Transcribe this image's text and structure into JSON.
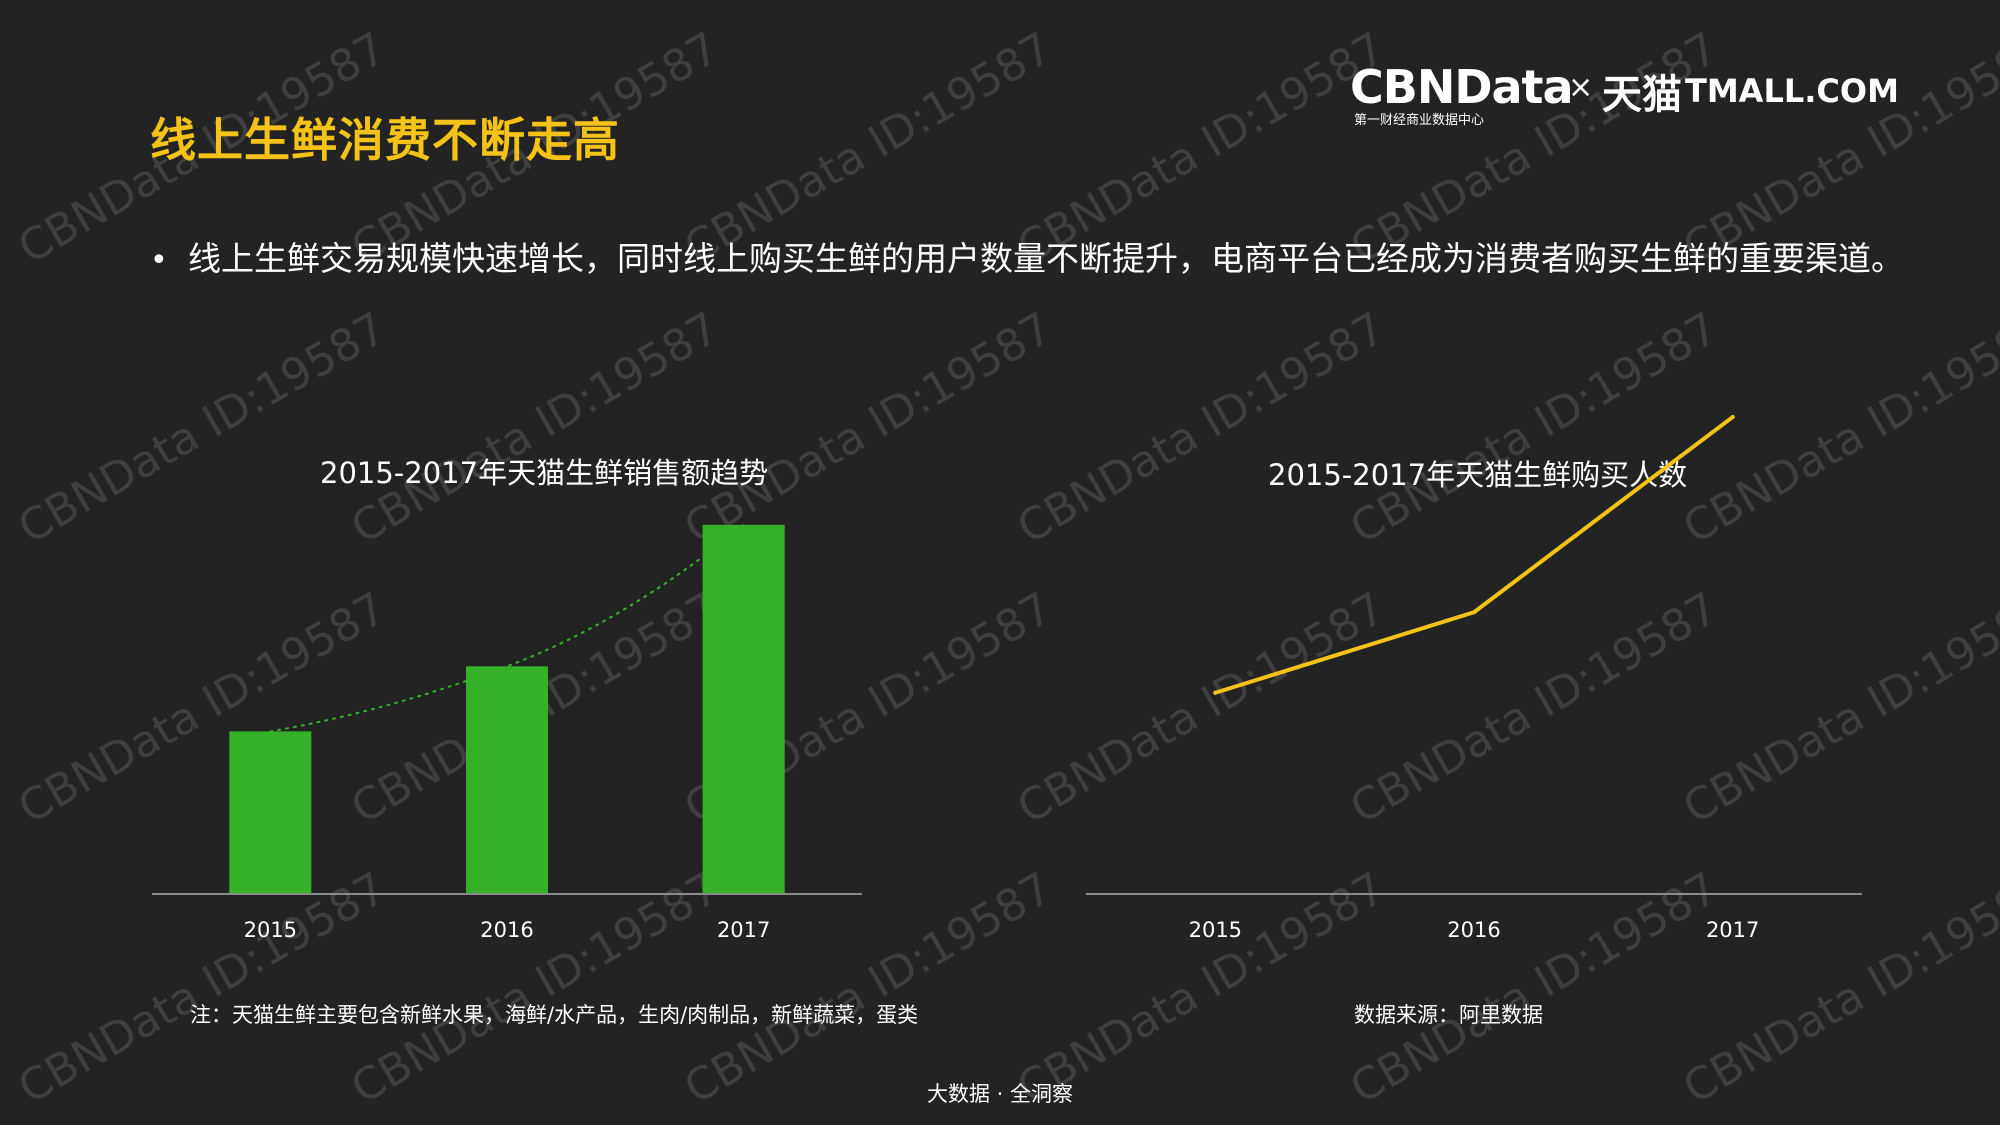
{
  "slide": {
    "title": "线上生鲜消费不断走高",
    "bullet": "线上生鲜交易规模快速增长，同时线上购买生鲜的用户数量不断提升，电商平台已经成为消费者购买生鲜的重要渠道。",
    "footer": "大数据 · 全洞察",
    "watermark": "CBNData ID:19587"
  },
  "brand": {
    "cbndata": "CBNData",
    "tagline": "第一财经商业数据中心",
    "times": "×",
    "tmall_cn": "天猫",
    "tmall_en": "TMALL.COM"
  },
  "colors": {
    "background": "#232323",
    "title": "#f5c318",
    "bar": "#36b22a",
    "trend": "#36b22a",
    "line": "#f5c318",
    "axis": "#8a8a8a"
  },
  "chart_data": [
    {
      "type": "bar",
      "title": "2015-2017年天猫生鲜销售额趋势",
      "categories": [
        "2015",
        "2016",
        "2017"
      ],
      "values": [
        1.0,
        1.4,
        2.27
      ],
      "ylim": [
        0,
        2.3
      ],
      "trendline": "dotted",
      "grid": false,
      "note": "注：天猫生鲜主要包含新鲜水果，海鲜/水产品，生肉/肉制品，新鲜蔬菜，蛋类"
    },
    {
      "type": "line",
      "title": "2015-2017年天猫生鲜购买人数",
      "categories": [
        "2015",
        "2016",
        "2017"
      ],
      "values": [
        1.0,
        1.4,
        2.37
      ],
      "ylim": [
        0,
        3.2
      ],
      "grid": false,
      "note": "数据来源：阿里数据"
    }
  ]
}
